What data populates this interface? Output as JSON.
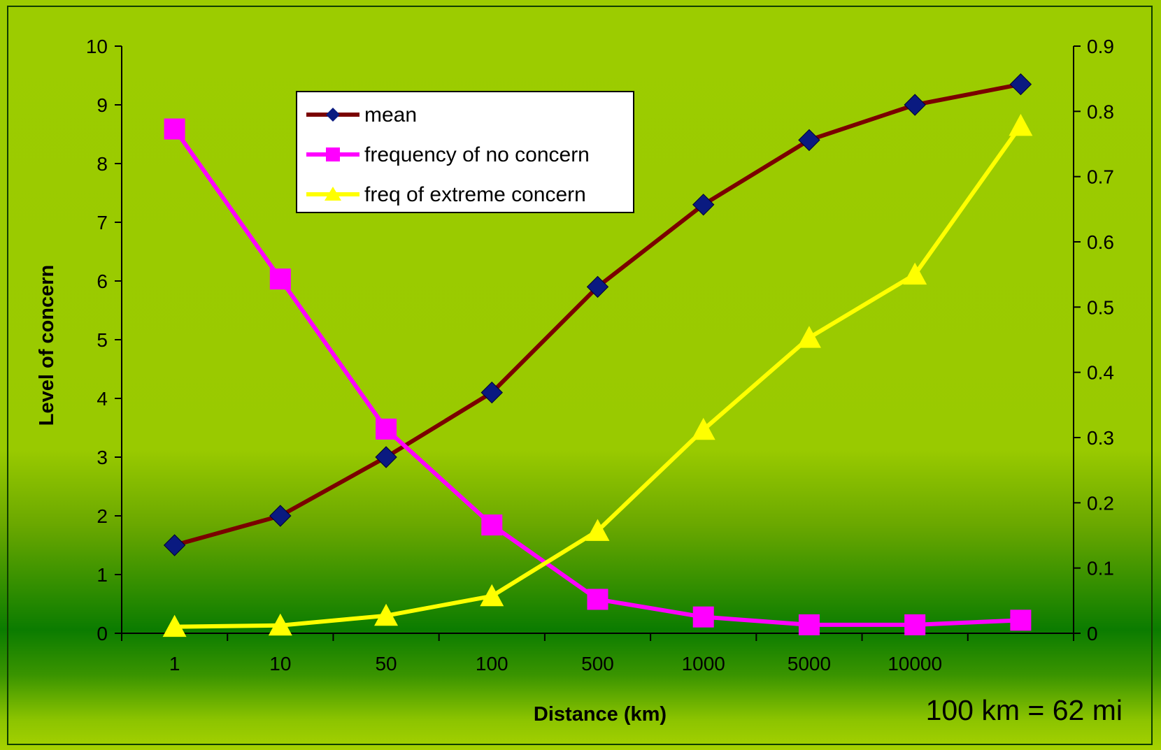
{
  "chart_data": {
    "type": "line",
    "categories": [
      "1",
      "10",
      "50",
      "100",
      "500",
      "1000",
      "5000",
      "10000",
      ""
    ],
    "xlabel": "Distance (km)",
    "ylabel": "Level of concern",
    "ylim": [
      0,
      10
    ],
    "y_ticks": [
      "0",
      "1",
      "2",
      "3",
      "4",
      "5",
      "6",
      "7",
      "8",
      "9",
      "10"
    ],
    "y2lim": [
      0,
      0.9
    ],
    "y2_ticks": [
      "0",
      "0.1",
      "0.2",
      "0.3",
      "0.4",
      "0.5",
      "0.6",
      "0.7",
      "0.8",
      "0.9"
    ],
    "note": "100 km = 62 mi",
    "legend_position": "top-left-center",
    "series": [
      {
        "name": "mean",
        "axis": "left",
        "color": "#7a0000",
        "marker_color": "#0a1a80",
        "marker": "diamond",
        "values": [
          1.5,
          2.0,
          3.0,
          4.1,
          5.9,
          7.3,
          8.4,
          9.0,
          9.35
        ]
      },
      {
        "name": "frequency of no concern",
        "axis": "right",
        "color": "#ff00ff",
        "marker": "square",
        "values": [
          0.773,
          0.543,
          0.313,
          0.166,
          0.052,
          0.025,
          0.013,
          0.013,
          0.02
        ]
      },
      {
        "name": "freq of extreme concern",
        "axis": "right",
        "color": "#ffff00",
        "marker": "triangle",
        "values": [
          0.01,
          0.012,
          0.027,
          0.057,
          0.157,
          0.312,
          0.453,
          0.55,
          0.778
        ]
      }
    ]
  }
}
